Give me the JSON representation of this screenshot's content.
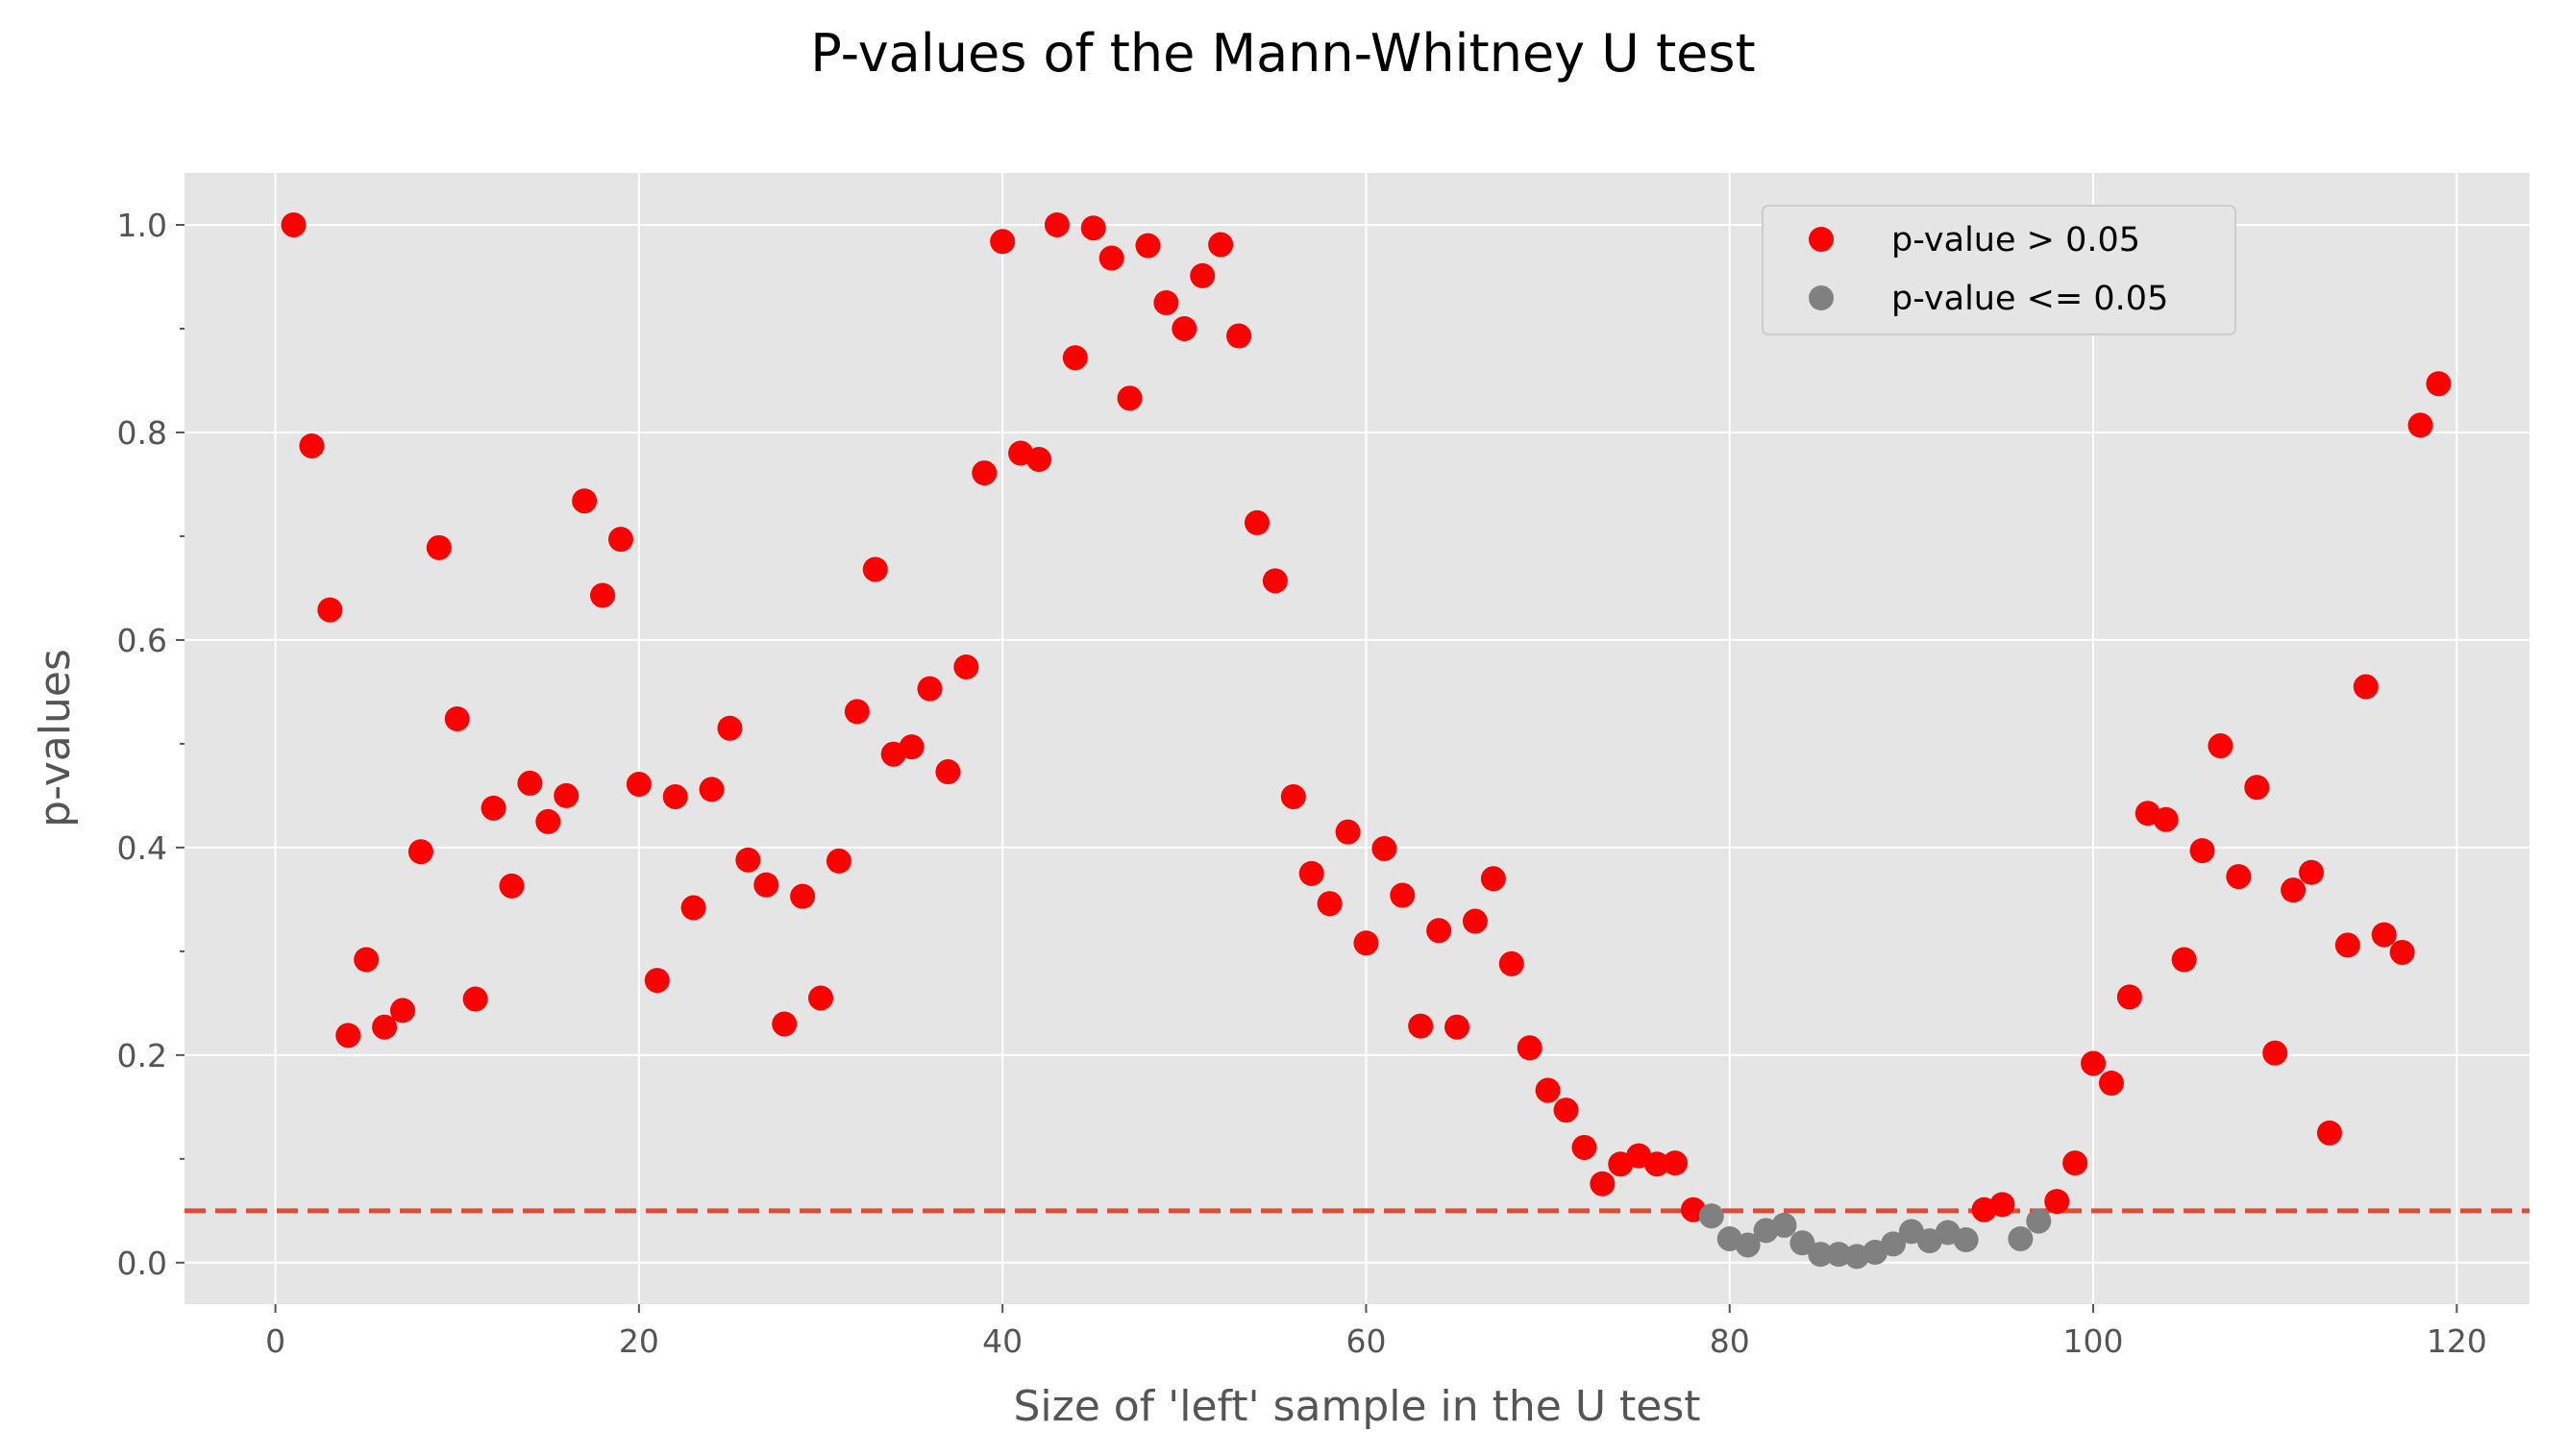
{
  "chart_data": {
    "type": "scatter",
    "title": "P-values of the Mann-Whitney U test",
    "xlabel": "Size of 'left' sample in the U test",
    "ylabel": "p-values",
    "xlim": [
      -5,
      124
    ],
    "ylim": [
      -0.04,
      1.05
    ],
    "x_ticks": [
      0,
      20,
      40,
      60,
      80,
      100,
      120
    ],
    "y_ticks": [
      0.0,
      0.2,
      0.4,
      0.6,
      0.8,
      1.0
    ],
    "x_tick_labels": [
      "0",
      "20",
      "40",
      "60",
      "80",
      "100",
      "120"
    ],
    "y_tick_labels": [
      "0.0",
      "0.2",
      "0.4",
      "0.6",
      "0.8",
      "1.0"
    ],
    "grid": true,
    "legend_position": "top-right",
    "threshold": 0.05,
    "colors": {
      "background": "#e5e5e5",
      "grid": "#ffffff",
      "above": "#ff0000",
      "below": "#808080",
      "threshold_line": "#e24a33"
    },
    "series": [
      {
        "name": "p-value > 0.05",
        "color": "#ff0000",
        "x": [
          1,
          2,
          3,
          4,
          5,
          6,
          7,
          8,
          9,
          10,
          11,
          12,
          13,
          14,
          15,
          16,
          17,
          18,
          19,
          20,
          21,
          22,
          23,
          24,
          25,
          26,
          27,
          28,
          29,
          30,
          31,
          32,
          33,
          34,
          35,
          36,
          37,
          38,
          39,
          40,
          41,
          42,
          43,
          44,
          45,
          46,
          47,
          48,
          49,
          50,
          51,
          52,
          53,
          54,
          55,
          56,
          57,
          58,
          59,
          60,
          61,
          62,
          63,
          64,
          65,
          66,
          67,
          68,
          69,
          70,
          71,
          72,
          73,
          74,
          75,
          76,
          77,
          78,
          94,
          95,
          98,
          99,
          100,
          101,
          102,
          103,
          104,
          105,
          106,
          107,
          108,
          109,
          110,
          111,
          112,
          113,
          114,
          115,
          116,
          117,
          118,
          119
        ],
        "y": [
          1.0,
          0.787,
          0.629,
          0.219,
          0.292,
          0.227,
          0.243,
          0.396,
          0.689,
          0.524,
          0.254,
          0.438,
          0.363,
          0.462,
          0.425,
          0.45,
          0.734,
          0.643,
          0.697,
          0.461,
          0.272,
          0.449,
          0.342,
          0.456,
          0.515,
          0.388,
          0.364,
          0.23,
          0.353,
          0.255,
          0.387,
          0.531,
          0.668,
          0.49,
          0.497,
          0.553,
          0.473,
          0.574,
          0.761,
          0.984,
          0.78,
          0.774,
          1.0,
          0.872,
          0.997,
          0.968,
          0.833,
          0.98,
          0.925,
          0.9,
          0.951,
          0.981,
          0.893,
          0.713,
          0.657,
          0.449,
          0.375,
          0.346,
          0.415,
          0.308,
          0.399,
          0.354,
          0.228,
          0.32,
          0.227,
          0.329,
          0.37,
          0.288,
          0.207,
          0.166,
          0.147,
          0.111,
          0.076,
          0.095,
          0.103,
          0.095,
          0.096,
          0.051,
          0.051,
          0.056,
          0.059,
          0.096,
          0.192,
          0.173,
          0.256,
          0.433,
          0.427,
          0.292,
          0.397,
          0.498,
          0.372,
          0.458,
          0.202,
          0.359,
          0.376,
          0.125,
          0.306,
          0.555,
          0.316,
          0.299,
          0.807,
          0.847
        ]
      },
      {
        "name": "p-value <= 0.05",
        "color": "#808080",
        "x": [
          79,
          80,
          81,
          82,
          83,
          84,
          85,
          86,
          87,
          88,
          89,
          90,
          91,
          92,
          93,
          96,
          97
        ],
        "y": [
          0.045,
          0.023,
          0.017,
          0.031,
          0.036,
          0.019,
          0.008,
          0.008,
          0.006,
          0.01,
          0.018,
          0.03,
          0.021,
          0.029,
          0.022,
          0.023,
          0.04
        ]
      }
    ]
  }
}
